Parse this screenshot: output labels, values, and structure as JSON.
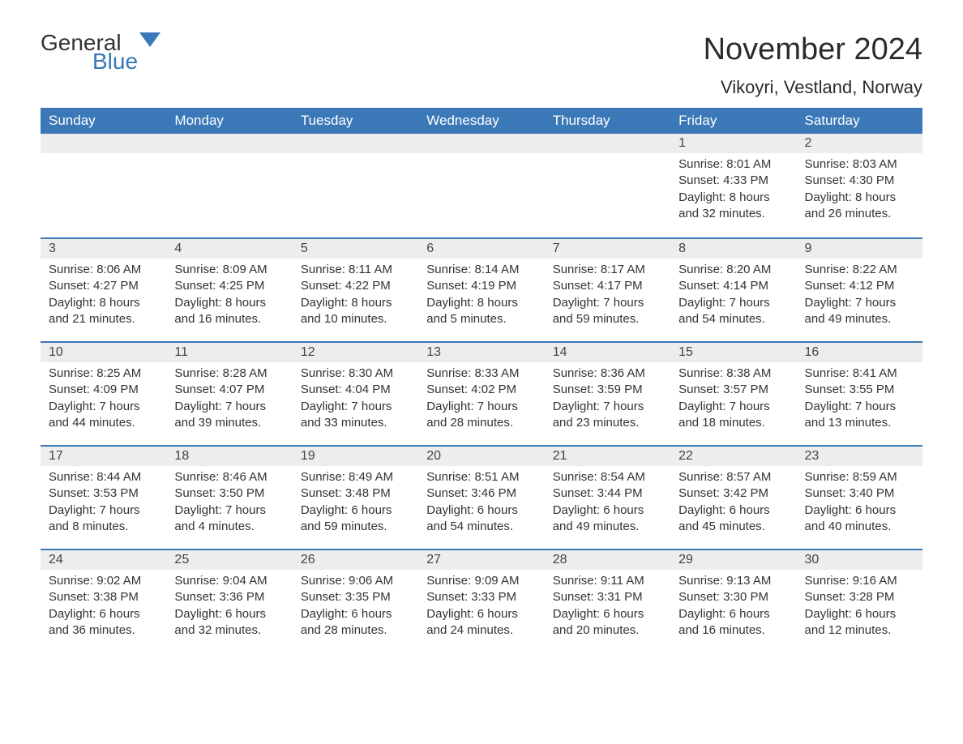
{
  "logo": {
    "word1": "General",
    "word2": "Blue"
  },
  "title": "November 2024",
  "location": "Vikoyri, Vestland, Norway",
  "colors": {
    "header_bg": "#3a78b8",
    "header_text": "#ffffff",
    "daynum_bg": "#ededed",
    "border_top": "#3a78b8",
    "body_text": "#333333",
    "logo_blue": "#3a78b8"
  },
  "days_of_week": [
    "Sunday",
    "Monday",
    "Tuesday",
    "Wednesday",
    "Thursday",
    "Friday",
    "Saturday"
  ],
  "weeks": [
    [
      {
        "n": "",
        "sr": "",
        "ss": "",
        "dl": ""
      },
      {
        "n": "",
        "sr": "",
        "ss": "",
        "dl": ""
      },
      {
        "n": "",
        "sr": "",
        "ss": "",
        "dl": ""
      },
      {
        "n": "",
        "sr": "",
        "ss": "",
        "dl": ""
      },
      {
        "n": "",
        "sr": "",
        "ss": "",
        "dl": ""
      },
      {
        "n": "1",
        "sr": "Sunrise: 8:01 AM",
        "ss": "Sunset: 4:33 PM",
        "dl": "Daylight: 8 hours and 32 minutes."
      },
      {
        "n": "2",
        "sr": "Sunrise: 8:03 AM",
        "ss": "Sunset: 4:30 PM",
        "dl": "Daylight: 8 hours and 26 minutes."
      }
    ],
    [
      {
        "n": "3",
        "sr": "Sunrise: 8:06 AM",
        "ss": "Sunset: 4:27 PM",
        "dl": "Daylight: 8 hours and 21 minutes."
      },
      {
        "n": "4",
        "sr": "Sunrise: 8:09 AM",
        "ss": "Sunset: 4:25 PM",
        "dl": "Daylight: 8 hours and 16 minutes."
      },
      {
        "n": "5",
        "sr": "Sunrise: 8:11 AM",
        "ss": "Sunset: 4:22 PM",
        "dl": "Daylight: 8 hours and 10 minutes."
      },
      {
        "n": "6",
        "sr": "Sunrise: 8:14 AM",
        "ss": "Sunset: 4:19 PM",
        "dl": "Daylight: 8 hours and 5 minutes."
      },
      {
        "n": "7",
        "sr": "Sunrise: 8:17 AM",
        "ss": "Sunset: 4:17 PM",
        "dl": "Daylight: 7 hours and 59 minutes."
      },
      {
        "n": "8",
        "sr": "Sunrise: 8:20 AM",
        "ss": "Sunset: 4:14 PM",
        "dl": "Daylight: 7 hours and 54 minutes."
      },
      {
        "n": "9",
        "sr": "Sunrise: 8:22 AM",
        "ss": "Sunset: 4:12 PM",
        "dl": "Daylight: 7 hours and 49 minutes."
      }
    ],
    [
      {
        "n": "10",
        "sr": "Sunrise: 8:25 AM",
        "ss": "Sunset: 4:09 PM",
        "dl": "Daylight: 7 hours and 44 minutes."
      },
      {
        "n": "11",
        "sr": "Sunrise: 8:28 AM",
        "ss": "Sunset: 4:07 PM",
        "dl": "Daylight: 7 hours and 39 minutes."
      },
      {
        "n": "12",
        "sr": "Sunrise: 8:30 AM",
        "ss": "Sunset: 4:04 PM",
        "dl": "Daylight: 7 hours and 33 minutes."
      },
      {
        "n": "13",
        "sr": "Sunrise: 8:33 AM",
        "ss": "Sunset: 4:02 PM",
        "dl": "Daylight: 7 hours and 28 minutes."
      },
      {
        "n": "14",
        "sr": "Sunrise: 8:36 AM",
        "ss": "Sunset: 3:59 PM",
        "dl": "Daylight: 7 hours and 23 minutes."
      },
      {
        "n": "15",
        "sr": "Sunrise: 8:38 AM",
        "ss": "Sunset: 3:57 PM",
        "dl": "Daylight: 7 hours and 18 minutes."
      },
      {
        "n": "16",
        "sr": "Sunrise: 8:41 AM",
        "ss": "Sunset: 3:55 PM",
        "dl": "Daylight: 7 hours and 13 minutes."
      }
    ],
    [
      {
        "n": "17",
        "sr": "Sunrise: 8:44 AM",
        "ss": "Sunset: 3:53 PM",
        "dl": "Daylight: 7 hours and 8 minutes."
      },
      {
        "n": "18",
        "sr": "Sunrise: 8:46 AM",
        "ss": "Sunset: 3:50 PM",
        "dl": "Daylight: 7 hours and 4 minutes."
      },
      {
        "n": "19",
        "sr": "Sunrise: 8:49 AM",
        "ss": "Sunset: 3:48 PM",
        "dl": "Daylight: 6 hours and 59 minutes."
      },
      {
        "n": "20",
        "sr": "Sunrise: 8:51 AM",
        "ss": "Sunset: 3:46 PM",
        "dl": "Daylight: 6 hours and 54 minutes."
      },
      {
        "n": "21",
        "sr": "Sunrise: 8:54 AM",
        "ss": "Sunset: 3:44 PM",
        "dl": "Daylight: 6 hours and 49 minutes."
      },
      {
        "n": "22",
        "sr": "Sunrise: 8:57 AM",
        "ss": "Sunset: 3:42 PM",
        "dl": "Daylight: 6 hours and 45 minutes."
      },
      {
        "n": "23",
        "sr": "Sunrise: 8:59 AM",
        "ss": "Sunset: 3:40 PM",
        "dl": "Daylight: 6 hours and 40 minutes."
      }
    ],
    [
      {
        "n": "24",
        "sr": "Sunrise: 9:02 AM",
        "ss": "Sunset: 3:38 PM",
        "dl": "Daylight: 6 hours and 36 minutes."
      },
      {
        "n": "25",
        "sr": "Sunrise: 9:04 AM",
        "ss": "Sunset: 3:36 PM",
        "dl": "Daylight: 6 hours and 32 minutes."
      },
      {
        "n": "26",
        "sr": "Sunrise: 9:06 AM",
        "ss": "Sunset: 3:35 PM",
        "dl": "Daylight: 6 hours and 28 minutes."
      },
      {
        "n": "27",
        "sr": "Sunrise: 9:09 AM",
        "ss": "Sunset: 3:33 PM",
        "dl": "Daylight: 6 hours and 24 minutes."
      },
      {
        "n": "28",
        "sr": "Sunrise: 9:11 AM",
        "ss": "Sunset: 3:31 PM",
        "dl": "Daylight: 6 hours and 20 minutes."
      },
      {
        "n": "29",
        "sr": "Sunrise: 9:13 AM",
        "ss": "Sunset: 3:30 PM",
        "dl": "Daylight: 6 hours and 16 minutes."
      },
      {
        "n": "30",
        "sr": "Sunrise: 9:16 AM",
        "ss": "Sunset: 3:28 PM",
        "dl": "Daylight: 6 hours and 12 minutes."
      }
    ]
  ]
}
